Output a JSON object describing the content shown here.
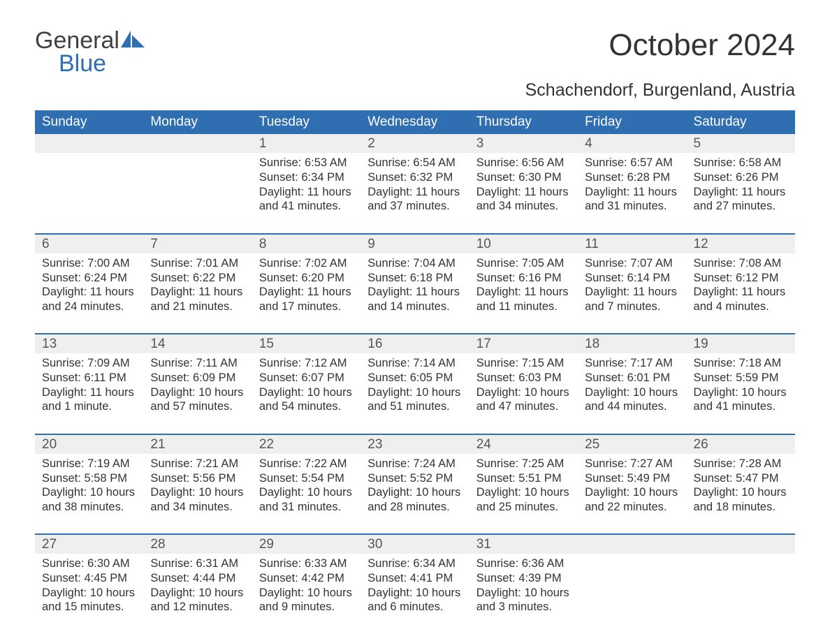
{
  "brand": {
    "general": "General",
    "blue": "Blue"
  },
  "title": "October 2024",
  "location": "Schachendorf, Burgenland, Austria",
  "colors": {
    "header_bg": "#2f6eb0",
    "header_text": "#ffffff",
    "daynum_bg": "#efefef",
    "daynum_text": "#555555",
    "body_text": "#333333",
    "rule": "#2f6eb0",
    "logo_gray": "#404040",
    "logo_blue": "#2f6eb0",
    "page_bg": "#ffffff"
  },
  "fontsize": {
    "title": 44,
    "subtitle": 25,
    "weekday": 19,
    "daynum": 19,
    "detail": 16.5,
    "logo": 34
  },
  "weekdays": [
    "Sunday",
    "Monday",
    "Tuesday",
    "Wednesday",
    "Thursday",
    "Friday",
    "Saturday"
  ],
  "weeks": [
    [
      null,
      null,
      {
        "n": "1",
        "sr": "Sunrise: 6:53 AM",
        "ss": "Sunset: 6:34 PM",
        "dl": "Daylight: 11 hours and 41 minutes."
      },
      {
        "n": "2",
        "sr": "Sunrise: 6:54 AM",
        "ss": "Sunset: 6:32 PM",
        "dl": "Daylight: 11 hours and 37 minutes."
      },
      {
        "n": "3",
        "sr": "Sunrise: 6:56 AM",
        "ss": "Sunset: 6:30 PM",
        "dl": "Daylight: 11 hours and 34 minutes."
      },
      {
        "n": "4",
        "sr": "Sunrise: 6:57 AM",
        "ss": "Sunset: 6:28 PM",
        "dl": "Daylight: 11 hours and 31 minutes."
      },
      {
        "n": "5",
        "sr": "Sunrise: 6:58 AM",
        "ss": "Sunset: 6:26 PM",
        "dl": "Daylight: 11 hours and 27 minutes."
      }
    ],
    [
      {
        "n": "6",
        "sr": "Sunrise: 7:00 AM",
        "ss": "Sunset: 6:24 PM",
        "dl": "Daylight: 11 hours and 24 minutes."
      },
      {
        "n": "7",
        "sr": "Sunrise: 7:01 AM",
        "ss": "Sunset: 6:22 PM",
        "dl": "Daylight: 11 hours and 21 minutes."
      },
      {
        "n": "8",
        "sr": "Sunrise: 7:02 AM",
        "ss": "Sunset: 6:20 PM",
        "dl": "Daylight: 11 hours and 17 minutes."
      },
      {
        "n": "9",
        "sr": "Sunrise: 7:04 AM",
        "ss": "Sunset: 6:18 PM",
        "dl": "Daylight: 11 hours and 14 minutes."
      },
      {
        "n": "10",
        "sr": "Sunrise: 7:05 AM",
        "ss": "Sunset: 6:16 PM",
        "dl": "Daylight: 11 hours and 11 minutes."
      },
      {
        "n": "11",
        "sr": "Sunrise: 7:07 AM",
        "ss": "Sunset: 6:14 PM",
        "dl": "Daylight: 11 hours and 7 minutes."
      },
      {
        "n": "12",
        "sr": "Sunrise: 7:08 AM",
        "ss": "Sunset: 6:12 PM",
        "dl": "Daylight: 11 hours and 4 minutes."
      }
    ],
    [
      {
        "n": "13",
        "sr": "Sunrise: 7:09 AM",
        "ss": "Sunset: 6:11 PM",
        "dl": "Daylight: 11 hours and 1 minute."
      },
      {
        "n": "14",
        "sr": "Sunrise: 7:11 AM",
        "ss": "Sunset: 6:09 PM",
        "dl": "Daylight: 10 hours and 57 minutes."
      },
      {
        "n": "15",
        "sr": "Sunrise: 7:12 AM",
        "ss": "Sunset: 6:07 PM",
        "dl": "Daylight: 10 hours and 54 minutes."
      },
      {
        "n": "16",
        "sr": "Sunrise: 7:14 AM",
        "ss": "Sunset: 6:05 PM",
        "dl": "Daylight: 10 hours and 51 minutes."
      },
      {
        "n": "17",
        "sr": "Sunrise: 7:15 AM",
        "ss": "Sunset: 6:03 PM",
        "dl": "Daylight: 10 hours and 47 minutes."
      },
      {
        "n": "18",
        "sr": "Sunrise: 7:17 AM",
        "ss": "Sunset: 6:01 PM",
        "dl": "Daylight: 10 hours and 44 minutes."
      },
      {
        "n": "19",
        "sr": "Sunrise: 7:18 AM",
        "ss": "Sunset: 5:59 PM",
        "dl": "Daylight: 10 hours and 41 minutes."
      }
    ],
    [
      {
        "n": "20",
        "sr": "Sunrise: 7:19 AM",
        "ss": "Sunset: 5:58 PM",
        "dl": "Daylight: 10 hours and 38 minutes."
      },
      {
        "n": "21",
        "sr": "Sunrise: 7:21 AM",
        "ss": "Sunset: 5:56 PM",
        "dl": "Daylight: 10 hours and 34 minutes."
      },
      {
        "n": "22",
        "sr": "Sunrise: 7:22 AM",
        "ss": "Sunset: 5:54 PM",
        "dl": "Daylight: 10 hours and 31 minutes."
      },
      {
        "n": "23",
        "sr": "Sunrise: 7:24 AM",
        "ss": "Sunset: 5:52 PM",
        "dl": "Daylight: 10 hours and 28 minutes."
      },
      {
        "n": "24",
        "sr": "Sunrise: 7:25 AM",
        "ss": "Sunset: 5:51 PM",
        "dl": "Daylight: 10 hours and 25 minutes."
      },
      {
        "n": "25",
        "sr": "Sunrise: 7:27 AM",
        "ss": "Sunset: 5:49 PM",
        "dl": "Daylight: 10 hours and 22 minutes."
      },
      {
        "n": "26",
        "sr": "Sunrise: 7:28 AM",
        "ss": "Sunset: 5:47 PM",
        "dl": "Daylight: 10 hours and 18 minutes."
      }
    ],
    [
      {
        "n": "27",
        "sr": "Sunrise: 6:30 AM",
        "ss": "Sunset: 4:45 PM",
        "dl": "Daylight: 10 hours and 15 minutes."
      },
      {
        "n": "28",
        "sr": "Sunrise: 6:31 AM",
        "ss": "Sunset: 4:44 PM",
        "dl": "Daylight: 10 hours and 12 minutes."
      },
      {
        "n": "29",
        "sr": "Sunrise: 6:33 AM",
        "ss": "Sunset: 4:42 PM",
        "dl": "Daylight: 10 hours and 9 minutes."
      },
      {
        "n": "30",
        "sr": "Sunrise: 6:34 AM",
        "ss": "Sunset: 4:41 PM",
        "dl": "Daylight: 10 hours and 6 minutes."
      },
      {
        "n": "31",
        "sr": "Sunrise: 6:36 AM",
        "ss": "Sunset: 4:39 PM",
        "dl": "Daylight: 10 hours and 3 minutes."
      },
      null,
      null
    ]
  ]
}
